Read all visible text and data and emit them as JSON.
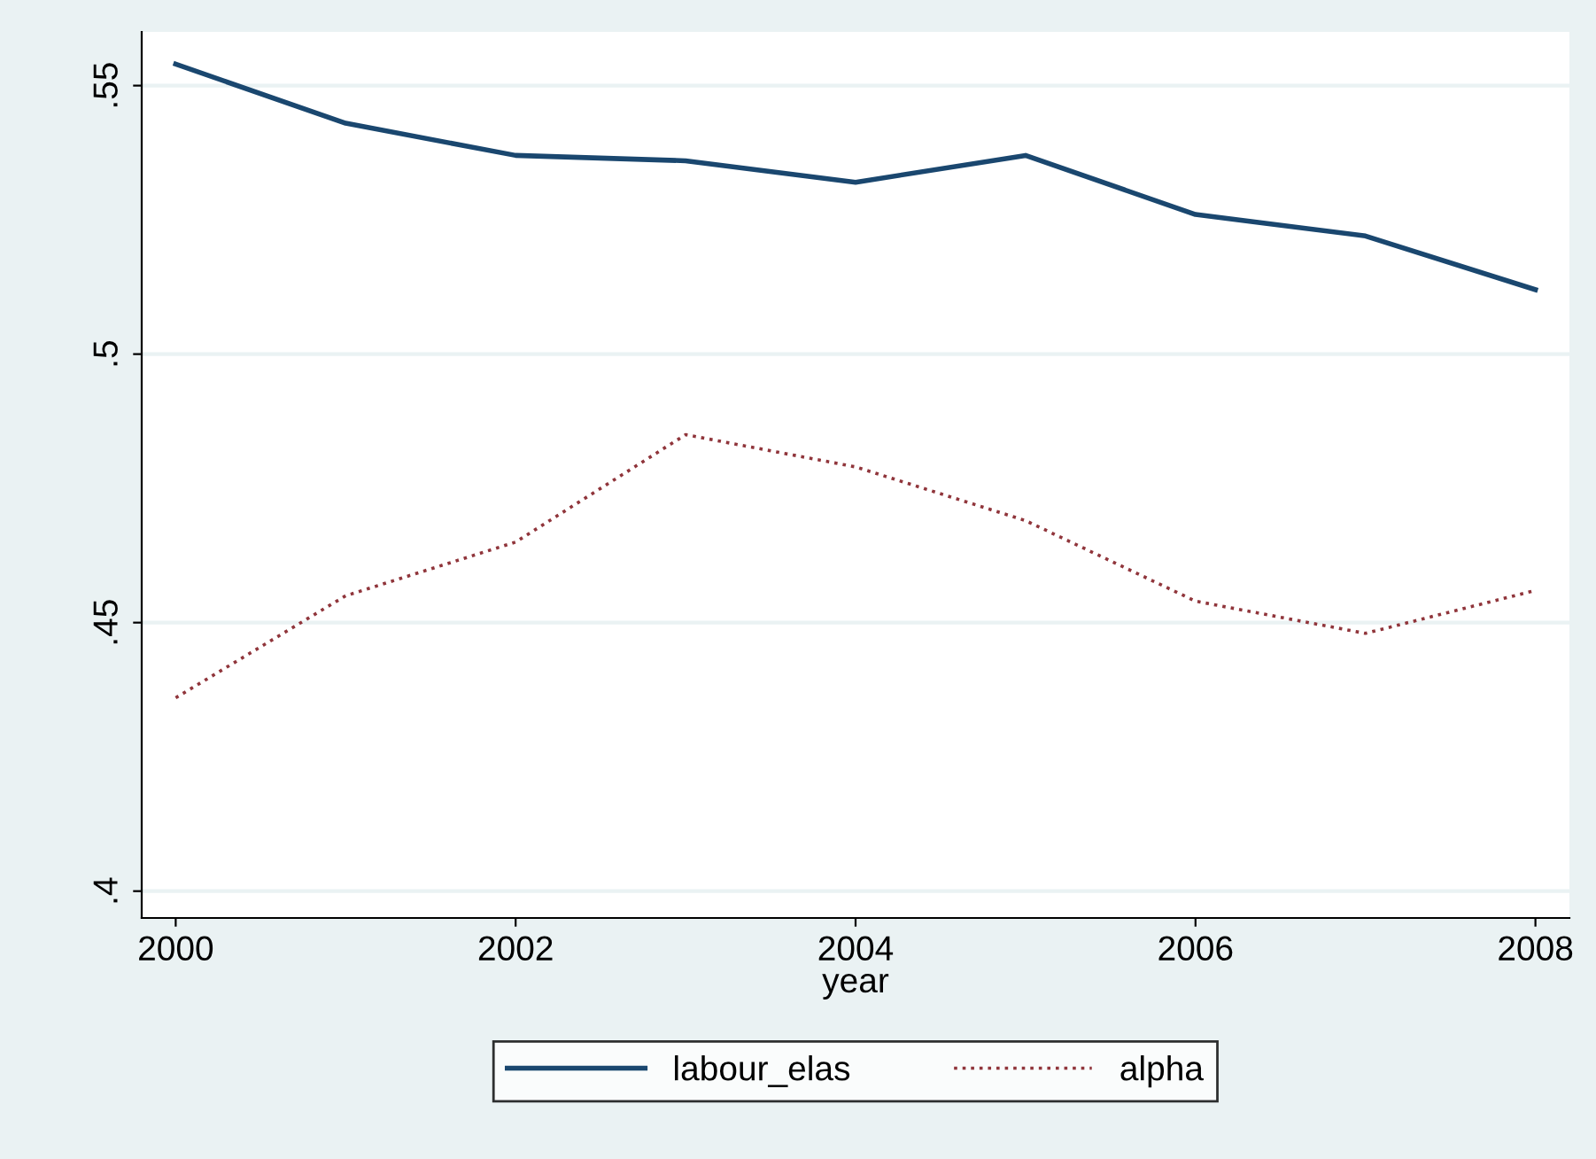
{
  "chart_data": {
    "type": "line",
    "xlabel": "year",
    "x": [
      2000,
      2001,
      2002,
      2003,
      2004,
      2005,
      2006,
      2007,
      2008
    ],
    "series": [
      {
        "name": "labour_elas",
        "color": "#1a476f",
        "line_style": "solid",
        "values": [
          0.554,
          0.543,
          0.537,
          0.536,
          0.532,
          0.537,
          0.526,
          0.522,
          0.512
        ]
      },
      {
        "name": "alpha",
        "color": "#90353b",
        "line_style": "dotted",
        "values": [
          0.436,
          0.455,
          0.465,
          0.485,
          0.479,
          0.469,
          0.454,
          0.448,
          0.456
        ]
      }
    ],
    "xlim": [
      1999.8,
      2008.2
    ],
    "xticks": [
      2000,
      2002,
      2004,
      2006,
      2008
    ],
    "ylim": [
      0.395,
      0.56
    ],
    "yticks": [
      {
        "value": 0.4,
        "label": ".4"
      },
      {
        "value": 0.45,
        "label": ".45"
      },
      {
        "value": 0.5,
        "label": ".5"
      },
      {
        "value": 0.55,
        "label": ".55"
      }
    ],
    "grid": "y",
    "legend": "bottom",
    "marker": "none"
  }
}
